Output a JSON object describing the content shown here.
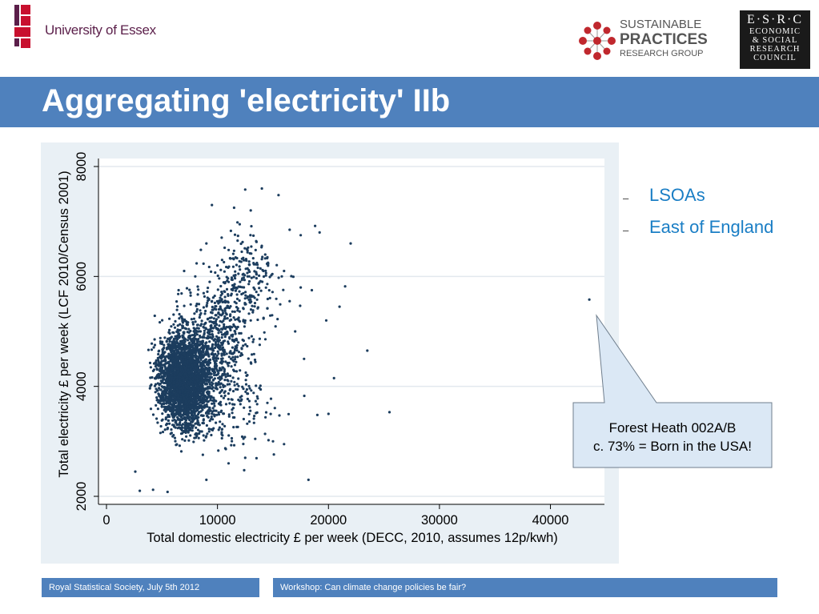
{
  "header": {
    "university_name": "University of Essex",
    "sprg_line1": "SUSTAINABLE",
    "sprg_line2": "PRACTICES",
    "sprg_line3": "RESEARCH GROUP",
    "esrc_line1": "E·S·R·C",
    "esrc_lines": [
      "ECONOMIC",
      "& SOCIAL",
      "RESEARCH",
      "COUNCIL"
    ]
  },
  "slide_title": "Aggregating 'electricity' IIb",
  "bullets": [
    "LSOAs",
    "East of England"
  ],
  "callout": {
    "line1": "Forest Heath 002A/B",
    "line2": "c. 73% = Born in the USA!"
  },
  "footer": {
    "left": "Royal Statistical Society, July 5th 2012",
    "right": "Workshop: Can climate change policies be fair?"
  },
  "colors": {
    "brand_purple": "#5b1f4a",
    "essex_red": "#c8102e",
    "title_band": "#4f81bd",
    "point_color": "#1c3d5e",
    "bullet_text": "#1a7ec5"
  },
  "chart_data": {
    "type": "scatter",
    "xlabel": "Total domestic electricity £ per week (DECC, 2010, assumes 12p/kwh)",
    "ylabel": "Total electricity £ per week (LCF 2010/Census 2001)",
    "xlim": [
      0,
      44000
    ],
    "ylim": [
      2000,
      8000
    ],
    "xticks": [
      0,
      10000,
      20000,
      30000,
      40000
    ],
    "yticks": [
      2000,
      4000,
      6000,
      8000
    ],
    "grid": true,
    "legend": "none",
    "points": [
      [
        43500,
        5580
      ],
      [
        23500,
        4650
      ],
      [
        25500,
        3530
      ],
      [
        20500,
        4150
      ],
      [
        19800,
        5200
      ],
      [
        18200,
        2300
      ],
      [
        22000,
        6600
      ],
      [
        21500,
        5820
      ],
      [
        19200,
        6800
      ],
      [
        18800,
        6920
      ],
      [
        21000,
        5450
      ],
      [
        18500,
        5750
      ],
      [
        19000,
        3480
      ],
      [
        20000,
        3500
      ],
      [
        17000,
        5000
      ],
      [
        16500,
        6850
      ],
      [
        17500,
        6750
      ],
      [
        12500,
        7580
      ],
      [
        14000,
        7600
      ],
      [
        15500,
        7480
      ],
      [
        11500,
        7250
      ],
      [
        9500,
        7300
      ],
      [
        13000,
        7200
      ],
      [
        12000,
        6950
      ],
      [
        16000,
        6100
      ],
      [
        15800,
        6000
      ],
      [
        17500,
        5800
      ],
      [
        14500,
        3700
      ],
      [
        12500,
        2700
      ],
      [
        11000,
        2600
      ],
      [
        9000,
        2300
      ],
      [
        5500,
        2080
      ],
      [
        4200,
        2120
      ],
      [
        3000,
        2100
      ],
      [
        2600,
        2450
      ],
      [
        15000,
        3000
      ],
      [
        16000,
        2950
      ],
      [
        17800,
        4500
      ],
      [
        13000,
        5200
      ],
      [
        11000,
        5900
      ],
      [
        10000,
        6200
      ],
      [
        9000,
        6600
      ],
      [
        8000,
        6000
      ],
      [
        14500,
        6350
      ],
      [
        13500,
        6050
      ],
      [
        16500,
        5550
      ],
      [
        6500,
        5750
      ],
      [
        7000,
        6100
      ]
    ],
    "cloud_clusters": [
      {
        "x_center": 7000,
        "y_center": 4100,
        "x_sd": 1600,
        "y_sd": 600,
        "count": 2600
      },
      {
        "x_center": 9500,
        "y_center": 4700,
        "x_sd": 2300,
        "y_sd": 800,
        "count": 700
      },
      {
        "x_center": 12500,
        "y_center": 5900,
        "x_sd": 2300,
        "y_sd": 650,
        "count": 260
      },
      {
        "x_center": 11000,
        "y_center": 3600,
        "x_sd": 3000,
        "y_sd": 600,
        "count": 160
      }
    ],
    "tick_labels_x": [
      "0",
      "10000",
      "20000",
      "30000",
      "40000"
    ],
    "tick_labels_y": [
      "2000",
      "4000",
      "6000",
      "8000"
    ]
  }
}
